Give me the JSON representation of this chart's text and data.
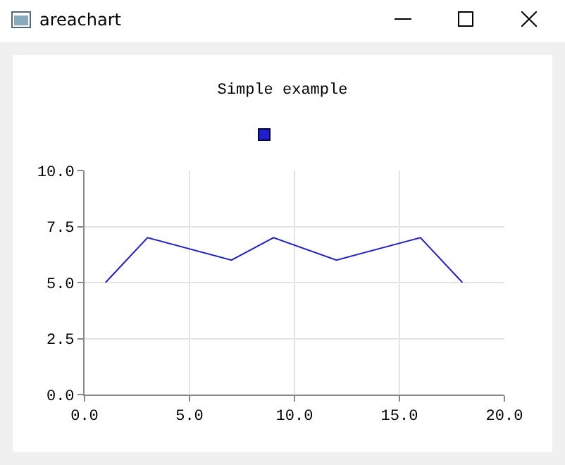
{
  "chart_data": {
    "type": "line",
    "title": "Simple example",
    "annotations": [
      "areachart"
    ],
    "x": [
      1,
      3,
      7,
      9,
      12,
      16,
      18
    ],
    "series": [
      {
        "color": "#2020c8",
        "values": [
          5,
          7,
          6,
          7,
          6,
          7,
          5
        ]
      }
    ],
    "xlim": [
      0,
      20
    ],
    "xticks": [
      {
        "value": 0,
        "label": "0.0"
      },
      {
        "value": 5,
        "label": "5.0"
      },
      {
        "value": 10,
        "label": "10.0"
      },
      {
        "value": 15,
        "label": "15.0"
      },
      {
        "value": 20,
        "label": "20.0"
      }
    ],
    "ylim": [
      0,
      10
    ],
    "yticks": [
      {
        "value": 0,
        "label": "0.0"
      },
      {
        "value": 2.5,
        "label": "2.5"
      },
      {
        "value": 5,
        "label": "5.0"
      },
      {
        "value": 7.5,
        "label": "7.5"
      },
      {
        "value": 10,
        "label": "10.0"
      }
    ],
    "grid": true,
    "marker": "none",
    "line_style": "solid"
  }
}
